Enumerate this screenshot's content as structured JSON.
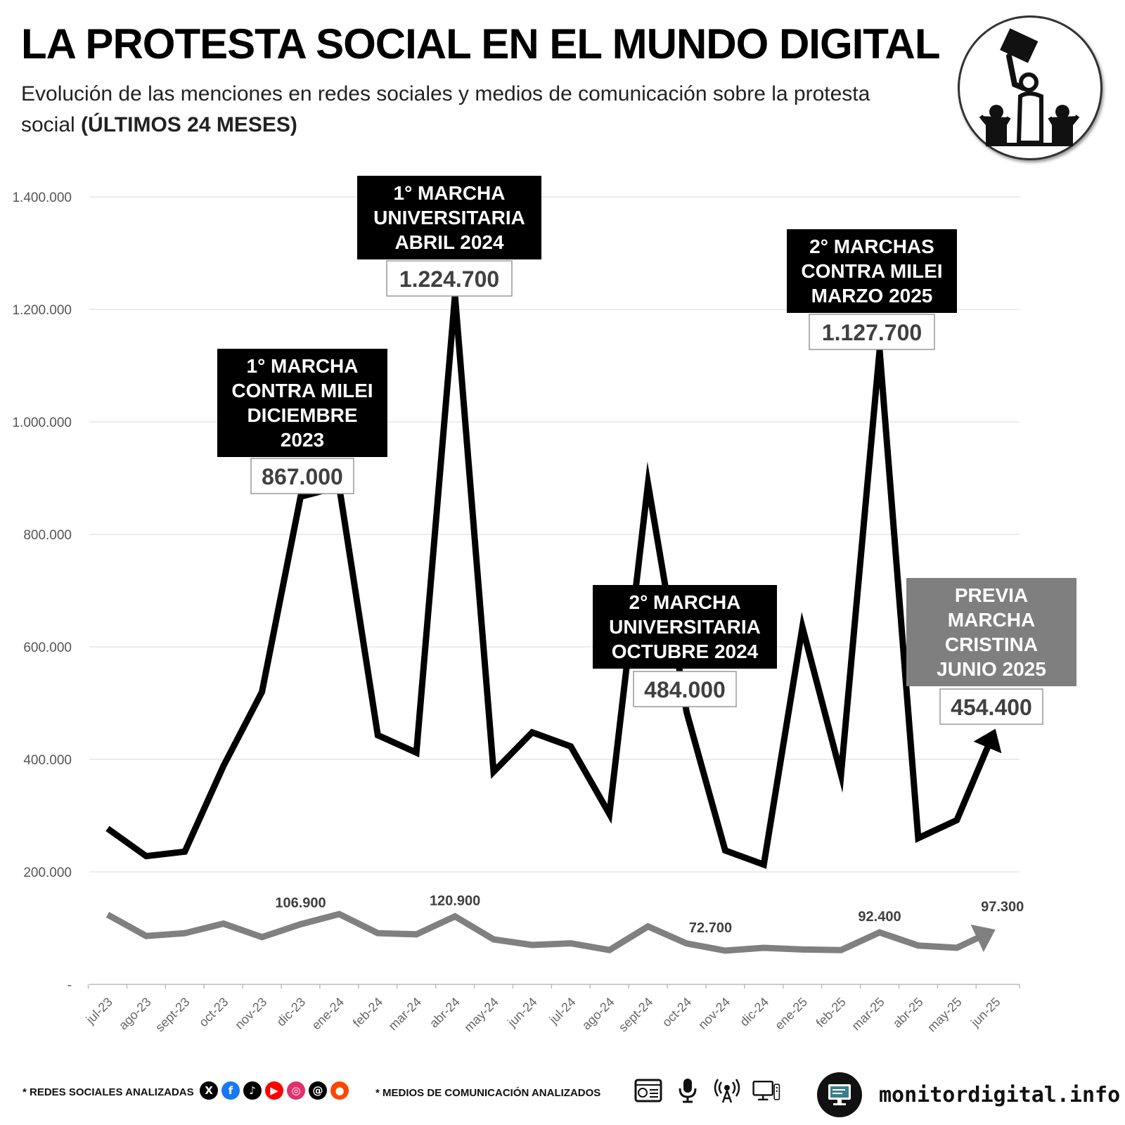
{
  "header": {
    "title": "LA PROTESTA SOCIAL EN EL MUNDO DIGITAL",
    "subtitle": "Evolución de las menciones en redes sociales y medios de comunicación sobre la protesta social",
    "subtitle_bold": "(ÚLTIMOS 24 MESES)"
  },
  "logo": {
    "icon": "protest-crowd-icon"
  },
  "colors": {
    "main_series": "#000000",
    "secondary_series": "#808080",
    "grid": "#e6e6e6",
    "annotation_bg": "#000000",
    "annotation_gray": "#7f7f7f"
  },
  "chart_data": {
    "type": "line",
    "title": "LA PROTESTA SOCIAL EN EL MUNDO DIGITAL",
    "xlabel": "",
    "ylabel": "",
    "ylim": [
      0,
      1400000
    ],
    "yticks": [
      0,
      200000,
      400000,
      600000,
      800000,
      1000000,
      1200000,
      1400000
    ],
    "ytick_labels": [
      "-",
      "200.000",
      "400.000",
      "600.000",
      "800.000",
      "1.000.000",
      "1.200.000",
      "1.400.000"
    ],
    "grid": true,
    "categories": [
      "jul-23",
      "ago-23",
      "sept-23",
      "oct-23",
      "nov-23",
      "dic-23",
      "ene-24",
      "feb-24",
      "mar-24",
      "abr-24",
      "may-24",
      "jun-24",
      "jul-24",
      "ago-24",
      "sept-24",
      "oct-24",
      "nov-24",
      "dic-24",
      "ene-25",
      "feb-25",
      "mar-25",
      "abr-25",
      "may-25",
      "jun-25"
    ],
    "series": [
      {
        "name": "Redes sociales",
        "values": [
          277000,
          228000,
          236000,
          388000,
          520000,
          867000,
          885000,
          443000,
          412000,
          1224700,
          378000,
          448000,
          423000,
          303000,
          890000,
          484000,
          238000,
          213000,
          635000,
          373000,
          1127700,
          260000,
          292000,
          454400
        ]
      },
      {
        "name": "Medios de comunicación",
        "values": [
          124000,
          86000,
          91000,
          108000,
          84000,
          106900,
          125000,
          91000,
          89000,
          120900,
          80000,
          70000,
          73000,
          61000,
          103000,
          72700,
          60000,
          65000,
          62000,
          61000,
          92400,
          69000,
          65000,
          97300
        ]
      }
    ],
    "annotations": [
      {
        "index": 5,
        "lines": [
          "1° MARCHA",
          "CONTRA MILEI",
          "DICIEMBRE",
          "2023"
        ],
        "value": "867.000",
        "style": "black"
      },
      {
        "index": 9,
        "lines": [
          "1° MARCHA",
          "UNIVERSITARIA",
          "ABRIL 2024"
        ],
        "value": "1.224.700",
        "style": "black"
      },
      {
        "index": 15,
        "lines": [
          "2° MARCHA",
          "UNIVERSITARIA",
          "OCTUBRE 2024"
        ],
        "value": "484.000",
        "style": "black"
      },
      {
        "index": 20,
        "lines": [
          "2° MARCHAS",
          "CONTRA MILEI",
          "MARZO 2025"
        ],
        "value": "1.127.700",
        "style": "black"
      },
      {
        "index": 23,
        "lines": [
          "PREVIA",
          "MARCHA",
          "CRISTINA",
          "JUNIO 2025"
        ],
        "value": "454.400",
        "style": "gray"
      }
    ],
    "secondary_labels": [
      {
        "index": 5,
        "value": "106.900"
      },
      {
        "index": 9,
        "value": "120.900"
      },
      {
        "index": 15,
        "value": "72.700"
      },
      {
        "index": 20,
        "value": "92.400"
      },
      {
        "index": 23,
        "value": "97.300"
      }
    ]
  },
  "footer": {
    "social_label": "* REDES SOCIALES ANALIZADAS",
    "media_label": "* MEDIOS DE COMUNICACIÓN ANALIZADOS",
    "social_icons": [
      {
        "name": "x-icon",
        "glyph": "X",
        "color": "#000000"
      },
      {
        "name": "facebook-icon",
        "glyph": "f",
        "color": "#1877f2"
      },
      {
        "name": "tiktok-icon",
        "glyph": "♪",
        "color": "#000000"
      },
      {
        "name": "youtube-icon",
        "glyph": "▶",
        "color": "#ff0000"
      },
      {
        "name": "instagram-icon",
        "glyph": "◎",
        "color": "#e1306c"
      },
      {
        "name": "threads-icon",
        "glyph": "@",
        "color": "#000000"
      },
      {
        "name": "reddit-icon",
        "glyph": "●",
        "color": "#ff4500"
      }
    ],
    "media_icons": [
      "newspaper-icon",
      "microphone-icon",
      "radio-antenna-icon",
      "tv-monitor-icon"
    ],
    "brand": "monitordigital.info",
    "brand_icon": "computer-monitor-icon"
  }
}
